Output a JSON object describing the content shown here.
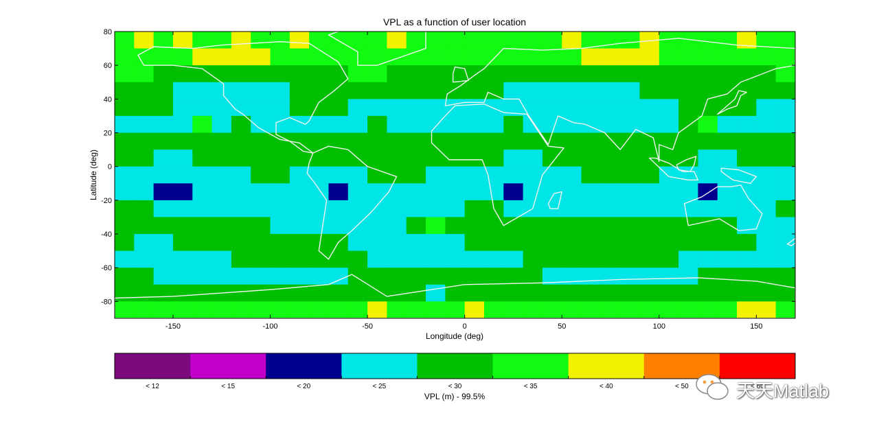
{
  "chart_data": {
    "type": "heatmap",
    "title": "VPL as a function of user location",
    "xlabel": "Longitude (deg)",
    "ylabel": "Latitude (deg)",
    "xlim": [
      -180,
      170
    ],
    "ylim": [
      -90,
      80
    ],
    "xticks": [
      -150,
      -100,
      -50,
      0,
      50,
      100,
      150
    ],
    "yticks": [
      -80,
      -60,
      -40,
      -20,
      0,
      20,
      40,
      60,
      80
    ],
    "grid": false,
    "coastlines": true,
    "lon_step": 10,
    "lat_step": 10,
    "note_values": "VPL in meters sampled on a 10-degree grid (lat rows from 80 to -90, lon columns from -180 to 170)",
    "values": [
      [
        32,
        38,
        32,
        38,
        32,
        32,
        38,
        32,
        32,
        38,
        32,
        32,
        32,
        32,
        38,
        32,
        32,
        32,
        32,
        32,
        32,
        32,
        32,
        38,
        32,
        32,
        32,
        38,
        32,
        32,
        32,
        32,
        38,
        32,
        32,
        38
      ],
      [
        32,
        32,
        32,
        32,
        37,
        38,
        37,
        37,
        32,
        32,
        32,
        32,
        32,
        32,
        32,
        32,
        32,
        32,
        32,
        32,
        32,
        32,
        32,
        32,
        37,
        38,
        37,
        37,
        32,
        32,
        32,
        32,
        32,
        32,
        32,
        32
      ],
      [
        32,
        32,
        28,
        28,
        28,
        28,
        28,
        28,
        28,
        28,
        28,
        28,
        32,
        32,
        28,
        28,
        28,
        28,
        28,
        28,
        28,
        28,
        28,
        28,
        28,
        28,
        28,
        28,
        28,
        28,
        28,
        28,
        28,
        28,
        32,
        32
      ],
      [
        27,
        28,
        28,
        24,
        24,
        24,
        24,
        24,
        24,
        27,
        28,
        28,
        28,
        28,
        28,
        28,
        28,
        27,
        28,
        28,
        24,
        24,
        24,
        24,
        24,
        24,
        24,
        27,
        28,
        28,
        28,
        28,
        28,
        28,
        27,
        27
      ],
      [
        27,
        28,
        27,
        24,
        24,
        24,
        24,
        24,
        24,
        27,
        28,
        28,
        24,
        24,
        24,
        24,
        24,
        24,
        24,
        24,
        24,
        24,
        24,
        24,
        24,
        24,
        24,
        24,
        24,
        28,
        28,
        28,
        28,
        24,
        24,
        24
      ],
      [
        24,
        24,
        24,
        24,
        32,
        24,
        27,
        24,
        24,
        24,
        24,
        24,
        24,
        27,
        24,
        24,
        24,
        24,
        24,
        24,
        27,
        24,
        24,
        24,
        24,
        24,
        24,
        24,
        24,
        28,
        32,
        24,
        24,
        24,
        24,
        24
      ],
      [
        28,
        28,
        28,
        28,
        28,
        28,
        28,
        28,
        28,
        28,
        28,
        28,
        28,
        28,
        28,
        28,
        28,
        28,
        28,
        28,
        28,
        28,
        28,
        28,
        28,
        28,
        28,
        28,
        28,
        28,
        28,
        28,
        28,
        28,
        28,
        28
      ],
      [
        28,
        28,
        24,
        24,
        28,
        28,
        28,
        28,
        28,
        28,
        28,
        28,
        28,
        28,
        28,
        28,
        28,
        28,
        28,
        28,
        24,
        24,
        28,
        28,
        28,
        28,
        28,
        28,
        28,
        28,
        24,
        24,
        28,
        28,
        28,
        28
      ],
      [
        24,
        24,
        24,
        24,
        24,
        24,
        24,
        28,
        28,
        24,
        24,
        24,
        24,
        28,
        28,
        28,
        24,
        24,
        24,
        24,
        24,
        24,
        24,
        24,
        28,
        28,
        28,
        28,
        24,
        24,
        24,
        24,
        24,
        24,
        24,
        24
      ],
      [
        24,
        24,
        18,
        18,
        24,
        24,
        24,
        24,
        24,
        24,
        24,
        18,
        24,
        24,
        24,
        24,
        24,
        24,
        24,
        24,
        18,
        24,
        24,
        24,
        24,
        24,
        24,
        24,
        24,
        24,
        18,
        24,
        24,
        24,
        24,
        24
      ],
      [
        28,
        28,
        24,
        24,
        24,
        24,
        24,
        24,
        24,
        24,
        24,
        24,
        24,
        24,
        24,
        24,
        24,
        24,
        28,
        28,
        24,
        24,
        24,
        24,
        24,
        24,
        24,
        24,
        24,
        24,
        24,
        24,
        24,
        24,
        28,
        28
      ],
      [
        28,
        28,
        28,
        28,
        28,
        28,
        28,
        28,
        24,
        24,
        24,
        24,
        24,
        24,
        24,
        28,
        32,
        28,
        28,
        28,
        28,
        28,
        28,
        28,
        28,
        28,
        28,
        28,
        28,
        28,
        28,
        28,
        24,
        24,
        24,
        28
      ],
      [
        28,
        24,
        24,
        28,
        28,
        28,
        28,
        28,
        28,
        28,
        28,
        28,
        24,
        24,
        24,
        24,
        24,
        24,
        28,
        28,
        28,
        28,
        28,
        28,
        28,
        28,
        28,
        28,
        28,
        28,
        28,
        28,
        28,
        24,
        24,
        24
      ],
      [
        24,
        24,
        24,
        24,
        24,
        24,
        28,
        28,
        28,
        28,
        28,
        28,
        28,
        24,
        24,
        24,
        24,
        24,
        24,
        24,
        24,
        28,
        28,
        28,
        28,
        28,
        28,
        28,
        28,
        24,
        24,
        24,
        24,
        24,
        24,
        24
      ],
      [
        28,
        28,
        24,
        24,
        24,
        24,
        24,
        24,
        24,
        24,
        24,
        24,
        28,
        28,
        28,
        28,
        28,
        28,
        28,
        28,
        28,
        28,
        24,
        24,
        24,
        24,
        24,
        24,
        24,
        24,
        28,
        28,
        28,
        28,
        28,
        28
      ],
      [
        28,
        28,
        28,
        28,
        28,
        28,
        28,
        28,
        28,
        28,
        28,
        28,
        28,
        28,
        28,
        28,
        24,
        28,
        28,
        28,
        28,
        28,
        28,
        28,
        28,
        28,
        28,
        28,
        28,
        28,
        28,
        28,
        28,
        28,
        28,
        28
      ],
      [
        32,
        32,
        32,
        32,
        32,
        32,
        32,
        32,
        32,
        32,
        32,
        32,
        32,
        38,
        32,
        32,
        32,
        32,
        38,
        32,
        32,
        32,
        32,
        32,
        32,
        32,
        32,
        32,
        32,
        32,
        32,
        32,
        38,
        38,
        32,
        38
      ],
      [
        28,
        28,
        32,
        32,
        28,
        28,
        28,
        28,
        28,
        28,
        28,
        28,
        28,
        32,
        28,
        28,
        28,
        28,
        28,
        28,
        28,
        32,
        28,
        28,
        28,
        28,
        32,
        28,
        28,
        28,
        28,
        28,
        28,
        28,
        28,
        28
      ]
    ],
    "continents_shown": true,
    "colorbar": {
      "label": "VPL (m) - 99.5%",
      "bins": [
        {
          "label": "< 12",
          "color": "#7a0a7e"
        },
        {
          "label": "< 15",
          "color": "#c000c8"
        },
        {
          "label": "< 20",
          "color": "#00008f"
        },
        {
          "label": "< 25",
          "color": "#00e5e5"
        },
        {
          "label": "< 30",
          "color": "#00bf00"
        },
        {
          "label": "< 35",
          "color": "#11fa11"
        },
        {
          "label": "< 40",
          "color": "#f2f200"
        },
        {
          "label": "< 50",
          "color": "#ff8000"
        },
        {
          "label": "< 60",
          "color": "#ff0000"
        }
      ],
      "thresholds": [
        12,
        15,
        20,
        25,
        30,
        35,
        40,
        50,
        60
      ]
    }
  },
  "watermark": {
    "text": "天天Matlab",
    "icon": "wechat-logo-icon",
    "icon_color": "#f0a040"
  }
}
